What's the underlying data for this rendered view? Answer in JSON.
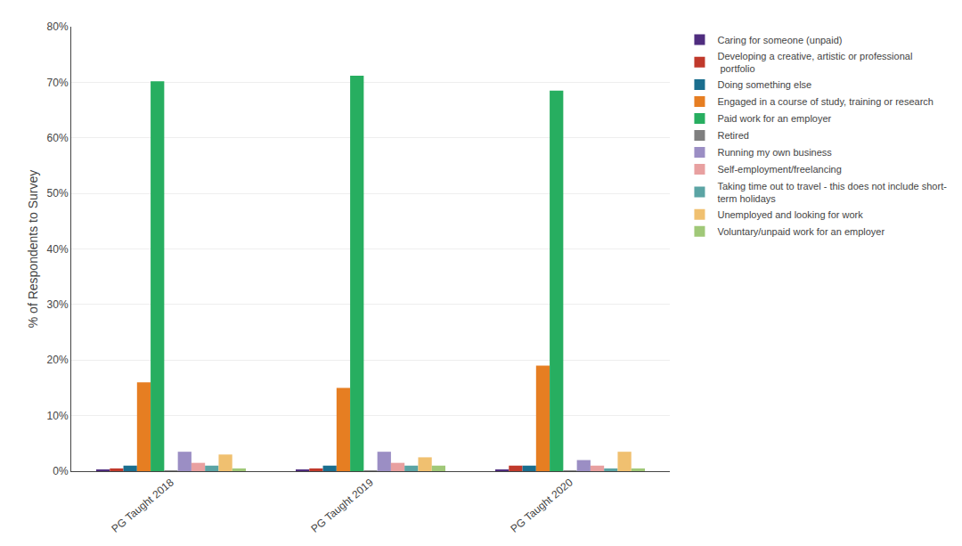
{
  "chart_data": {
    "type": "bar",
    "categories": [
      "PG Taught 2018",
      "PG Taught 2019",
      "PG Taught 2020"
    ],
    "series": [
      {
        "name": "Caring for someone (unpaid)",
        "color": "#4f2d7f",
        "values": [
          0.3,
          0.2,
          0.3
        ]
      },
      {
        "name": "Developing a creative, artistic or professional\n portfolio",
        "color": "#c0392b",
        "values": [
          0.5,
          0.5,
          1.0
        ]
      },
      {
        "name": "Doing something else",
        "color": "#1a6e8e",
        "values": [
          1.0,
          1.0,
          1.0
        ]
      },
      {
        "name": "Engaged in a course of study, training or research",
        "color": "#e67e22",
        "values": [
          16.0,
          15.0,
          19.0
        ]
      },
      {
        "name": "Paid work for an employer",
        "color": "#27ae60",
        "values": [
          70.2,
          71.2,
          68.5
        ]
      },
      {
        "name": "Retired",
        "color": "#7f7f7f",
        "values": [
          0.15,
          0.1,
          0.1
        ]
      },
      {
        "name": "Running my own business",
        "color": "#9b8ec4",
        "values": [
          3.5,
          3.5,
          2.0
        ]
      },
      {
        "name": "Self-employment/freelancing",
        "color": "#e8a0a0",
        "values": [
          1.5,
          1.5,
          1.0
        ]
      },
      {
        "name": "Taking time out to travel - this does not include short-\nterm holidays",
        "color": "#5ba4a4",
        "values": [
          1.0,
          1.0,
          0.5
        ]
      },
      {
        "name": "Unemployed and looking for work",
        "color": "#f0c070",
        "values": [
          3.0,
          2.5,
          3.5
        ]
      },
      {
        "name": "Voluntary/unpaid work for an employer",
        "color": "#a0c878",
        "values": [
          0.5,
          1.0,
          0.5
        ]
      }
    ],
    "ylabel": "% of Respondents to Survey",
    "ylim": [
      0,
      80
    ],
    "yticks": [
      {
        "value": 0,
        "label": "0%"
      },
      {
        "value": 10,
        "label": "10%"
      },
      {
        "value": 20,
        "label": "20%"
      },
      {
        "value": 30,
        "label": "30%"
      },
      {
        "value": 40,
        "label": "40%"
      },
      {
        "value": 50,
        "label": "50%"
      },
      {
        "value": 60,
        "label": "60%"
      },
      {
        "value": 70,
        "label": "70%"
      },
      {
        "value": 80,
        "label": "80%"
      }
    ],
    "grid": true,
    "legend": "right"
  }
}
